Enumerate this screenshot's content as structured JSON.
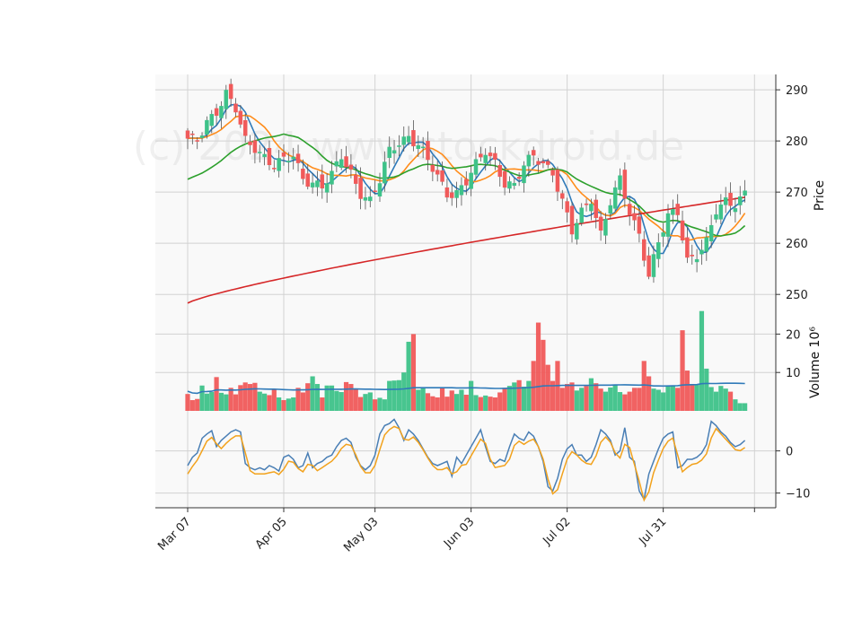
{
  "chart_data": {
    "type": "candlestick",
    "watermark": "(c) 2024 www.stockdroid.de",
    "x_tick_labels": [
      {
        "index": 0,
        "label": "Mar 07"
      },
      {
        "index": 20,
        "label": "Apr 05"
      },
      {
        "index": 39,
        "label": "May 03"
      },
      {
        "index": 59,
        "label": "Jun 03"
      },
      {
        "index": 79,
        "label": "Jul 02"
      },
      {
        "index": 99,
        "label": "Jul 31"
      }
    ],
    "num_sessions": 117,
    "price_panel": {
      "ylabel": "Price",
      "ylim": [
        246.0,
        293.0
      ],
      "yticks": [
        250,
        260,
        270,
        280,
        290
      ],
      "grid": true,
      "up_color": "#3ec289",
      "down_color": "#f05a5a",
      "ma_series": [
        {
          "id": "ma-fast",
          "color": "#2f7ab9"
        },
        {
          "id": "ma-medium",
          "color": "#ff8c1a"
        },
        {
          "id": "ma-slow",
          "color": "#2ca02c"
        },
        {
          "id": "ma-long",
          "color": "#d62728"
        }
      ],
      "anchors": [
        [
          0,
          280
        ],
        [
          2,
          280
        ],
        [
          4,
          284
        ],
        [
          6,
          286
        ],
        [
          8,
          289
        ],
        [
          10,
          286
        ],
        [
          12,
          280
        ],
        [
          14,
          279
        ],
        [
          16,
          277
        ],
        [
          18,
          275
        ],
        [
          20,
          276
        ],
        [
          22,
          277
        ],
        [
          24,
          273
        ],
        [
          26,
          272
        ],
        [
          28,
          271
        ],
        [
          30,
          273
        ],
        [
          32,
          277
        ],
        [
          34,
          274
        ],
        [
          36,
          270
        ],
        [
          38,
          268
        ],
        [
          40,
          272
        ],
        [
          42,
          278
        ],
        [
          44,
          280
        ],
        [
          46,
          281
        ],
        [
          48,
          279
        ],
        [
          50,
          276
        ],
        [
          52,
          273
        ],
        [
          54,
          270
        ],
        [
          56,
          270
        ],
        [
          58,
          272
        ],
        [
          60,
          275
        ],
        [
          62,
          278
        ],
        [
          64,
          276
        ],
        [
          66,
          272
        ],
        [
          68,
          271
        ],
        [
          70,
          275
        ],
        [
          72,
          277
        ],
        [
          74,
          276
        ],
        [
          76,
          274
        ],
        [
          78,
          268
        ],
        [
          80,
          262
        ],
        [
          82,
          266
        ],
        [
          84,
          269
        ],
        [
          86,
          262
        ],
        [
          88,
          268
        ],
        [
          90,
          272
        ],
        [
          92,
          266
        ],
        [
          94,
          262
        ],
        [
          96,
          254
        ],
        [
          98,
          260
        ],
        [
          100,
          265
        ],
        [
          102,
          266
        ],
        [
          104,
          257
        ],
        [
          106,
          258
        ],
        [
          108,
          260
        ],
        [
          110,
          266
        ],
        [
          112,
          268
        ],
        [
          114,
          268
        ],
        [
          116,
          270
        ]
      ]
    },
    "volume_panel": {
      "ylabel": "Volume  10⁶",
      "ylim": [
        0,
        25
      ],
      "yticks": [
        10,
        20
      ],
      "grid": true,
      "ma_color": "#2f7ab9",
      "values": [
        4.4,
        2.8,
        3.1,
        6.6,
        4.5,
        4.9,
        8.8,
        4.7,
        4.3,
        6.0,
        4.3,
        6.7,
        7.4,
        7.0,
        7.3,
        5.0,
        4.5,
        4.1,
        5.6,
        3.5,
        2.8,
        3.2,
        3.5,
        6.0,
        4.8,
        7.2,
        9.0,
        7.0,
        3.5,
        6.6,
        6.6,
        5.2,
        4.9,
        7.5,
        7.0,
        5.8,
        3.6,
        4.4,
        4.8,
        3.0,
        3.4,
        3.0,
        7.8,
        7.9,
        8.0,
        10.0,
        18.0,
        20.0,
        5.5,
        6.0,
        4.6,
        3.8,
        3.5,
        6.0,
        3.7,
        5.3,
        4.4,
        5.5,
        4.2,
        7.8,
        4.1,
        3.6,
        4.0,
        3.7,
        3.5,
        4.8,
        6.0,
        6.5,
        7.4,
        8.0,
        6.3,
        7.8,
        13.0,
        23.0,
        18.5,
        12.0,
        7.8,
        13.0,
        6.0,
        7.0,
        7.4,
        5.3,
        6.0,
        6.5,
        8.5,
        7.2,
        5.8,
        5.0,
        6.1,
        6.7,
        4.9,
        4.3,
        5.0,
        6.0,
        6.0,
        13.0,
        9.0,
        5.8,
        5.5,
        4.8,
        6.5,
        6.5,
        6.0,
        21.0,
        10.5,
        7.0,
        7.0,
        26.0,
        11.0,
        6.2,
        5.0,
        6.5,
        5.8,
        5.0,
        3.0,
        2.0,
        2.0
      ]
    },
    "oscillator_panel": {
      "ylim": [
        -13.5,
        9.5
      ],
      "yticks": [
        -10,
        0
      ],
      "grid": true,
      "series": [
        {
          "id": "osc-main",
          "color": "#4a7fb5"
        },
        {
          "id": "osc-signal",
          "color": "#f2a21c"
        }
      ],
      "values": [
        -3.5,
        -1.5,
        -0.5,
        3.0,
        4.0,
        4.8,
        1.0,
        2.5,
        3.5,
        4.5,
        5.0,
        4.5,
        -3.0,
        -4.0,
        -4.5,
        -4.0,
        -4.5,
        -3.5,
        -4.0,
        -4.8,
        -1.5,
        -1.0,
        -2.0,
        -4.0,
        -3.5,
        -0.5,
        -4.0,
        -3.0,
        -2.5,
        -1.5,
        -1.0,
        1.0,
        2.5,
        3.0,
        2.0,
        -1.5,
        -3.5,
        -4.5,
        -3.5,
        -1.0,
        4.0,
        6.0,
        6.5,
        7.5,
        5.5,
        2.5,
        5.0,
        4.0,
        2.5,
        0.5,
        -1.5,
        -3.0,
        -3.5,
        -3.0,
        -2.5,
        -6.0,
        -1.5,
        -3.0,
        -1.0,
        1.0,
        3.0,
        5.0,
        1.0,
        -2.5,
        -3.0,
        -2.0,
        -2.5,
        1.0,
        4.0,
        3.0,
        2.5,
        4.5,
        3.5,
        1.0,
        -2.5,
        -8.5,
        -9.5,
        -6.5,
        -2.0,
        0.5,
        1.5,
        -1.0,
        -1.0,
        -2.5,
        -1.5,
        1.5,
        5.0,
        4.0,
        2.5,
        -1.0,
        0.0,
        5.5,
        -1.5,
        -2.5,
        -9.5,
        -11.5,
        -5.5,
        -2.5,
        0.5,
        3.0,
        4.0,
        4.5,
        -4.0,
        -3.5,
        -2.0,
        -2.0,
        -1.5,
        -0.5,
        1.5,
        7.0,
        6.0,
        4.5,
        3.5,
        2.0,
        1.0,
        1.5,
        2.5
      ]
    }
  }
}
